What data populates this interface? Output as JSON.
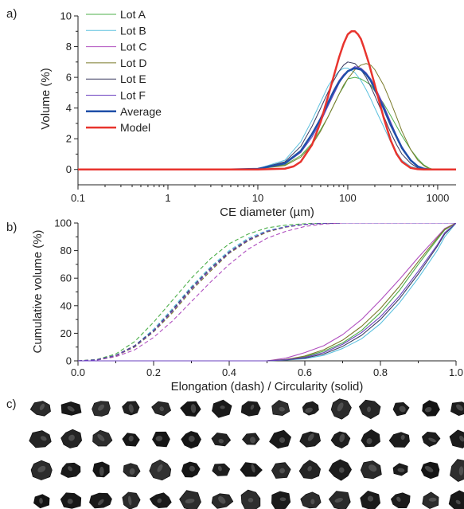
{
  "panels": {
    "a": "a)",
    "b": "b)",
    "c": "c)"
  },
  "chart_data": [
    {
      "type": "line",
      "panel": "a)",
      "xlabel": "CE diameter (µm)",
      "ylabel": "Volume (%)",
      "xscale": "log",
      "xlim": [
        0.1,
        1600
      ],
      "ylim": [
        -1,
        10
      ],
      "xticks": [
        0.1,
        1,
        10,
        100,
        1000
      ],
      "xtick_labels": [
        "0.1",
        "1",
        "10",
        "100",
        "1000"
      ],
      "yticks": [
        0,
        2,
        4,
        6,
        8,
        10
      ],
      "ytick_labels": [
        "0",
        "2",
        "4",
        "6",
        "8",
        "10"
      ],
      "grid": false,
      "legend_position": "top-left",
      "series": [
        {
          "name": "Lot A",
          "color": "#4daf4a",
          "width": 1,
          "x": [
            0.1,
            5,
            10,
            20,
            30,
            40,
            50,
            60,
            70,
            80,
            90,
            100,
            120,
            140,
            160,
            180,
            200,
            250,
            300,
            350,
            400,
            500,
            600,
            700,
            800,
            900,
            1000,
            1600
          ],
          "y": [
            0,
            0,
            0.05,
            0.3,
            0.9,
            1.7,
            2.6,
            3.4,
            4.2,
            4.9,
            5.4,
            5.9,
            6.0,
            5.9,
            5.7,
            5.5,
            5.1,
            4.3,
            3.5,
            2.8,
            2.2,
            1.3,
            0.7,
            0.3,
            0.1,
            0,
            0,
            0
          ]
        },
        {
          "name": "Lot B",
          "color": "#5bc0de",
          "width": 1,
          "x": [
            0.1,
            5,
            10,
            20,
            30,
            40,
            50,
            60,
            70,
            80,
            90,
            100,
            120,
            140,
            160,
            180,
            200,
            250,
            300,
            350,
            400,
            500,
            600,
            700,
            800,
            900,
            1000,
            1600
          ],
          "y": [
            0,
            0,
            0.05,
            0.6,
            1.8,
            3.2,
            4.4,
            5.4,
            6.0,
            6.4,
            6.6,
            6.6,
            6.3,
            5.8,
            5.2,
            4.6,
            4.0,
            2.8,
            1.8,
            1.1,
            0.6,
            0.2,
            0.05,
            0,
            0,
            0,
            0,
            0
          ]
        },
        {
          "name": "Lot C",
          "color": "#b04fbf",
          "width": 1,
          "x": [
            0.1,
            5,
            10,
            20,
            30,
            40,
            50,
            60,
            70,
            80,
            90,
            100,
            120,
            140,
            160,
            180,
            200,
            250,
            300,
            350,
            400,
            500,
            600,
            700,
            800,
            900,
            1000,
            1600
          ],
          "y": [
            0,
            0,
            0.05,
            0.4,
            1.2,
            2.3,
            3.4,
            4.4,
            5.2,
            5.8,
            6.2,
            6.4,
            6.6,
            6.5,
            6.2,
            5.8,
            5.3,
            4.1,
            3.0,
            2.1,
            1.4,
            0.6,
            0.2,
            0.05,
            0,
            0,
            0,
            0
          ]
        },
        {
          "name": "Lot D",
          "color": "#7a7a2a",
          "width": 1,
          "x": [
            0.1,
            5,
            10,
            20,
            30,
            40,
            50,
            60,
            70,
            80,
            90,
            100,
            120,
            140,
            160,
            180,
            200,
            250,
            300,
            350,
            400,
            500,
            600,
            700,
            800,
            900,
            1000,
            1600
          ],
          "y": [
            0,
            0,
            0.03,
            0.25,
            0.8,
            1.6,
            2.5,
            3.4,
            4.2,
            4.9,
            5.5,
            5.9,
            6.5,
            6.8,
            6.9,
            6.8,
            6.5,
            5.5,
            4.4,
            3.4,
            2.5,
            1.3,
            0.6,
            0.25,
            0.05,
            0,
            0,
            0
          ]
        },
        {
          "name": "Lot E",
          "color": "#3a3a60",
          "width": 1,
          "x": [
            0.1,
            5,
            10,
            20,
            30,
            40,
            50,
            60,
            70,
            80,
            90,
            100,
            120,
            140,
            160,
            180,
            200,
            250,
            300,
            350,
            400,
            500,
            600,
            700,
            800,
            900,
            1000,
            1600
          ],
          "y": [
            0,
            0,
            0.05,
            0.5,
            1.5,
            2.8,
            4.0,
            5.0,
            5.8,
            6.4,
            6.8,
            7.0,
            6.9,
            6.5,
            6.0,
            5.4,
            4.8,
            3.5,
            2.4,
            1.6,
            1.0,
            0.4,
            0.1,
            0,
            0,
            0,
            0,
            0
          ]
        },
        {
          "name": "Lot F",
          "color": "#6a3fbf",
          "width": 1,
          "x": [
            0.1,
            5,
            10,
            20,
            30,
            40,
            50,
            60,
            70,
            80,
            90,
            100,
            120,
            140,
            160,
            180,
            200,
            250,
            300,
            350,
            400,
            500,
            600,
            700,
            800,
            900,
            1000,
            1600
          ],
          "y": [
            0,
            0,
            0.04,
            0.35,
            1.1,
            2.1,
            3.1,
            4.1,
            4.9,
            5.6,
            6.1,
            6.4,
            6.7,
            6.6,
            6.3,
            5.9,
            5.4,
            4.2,
            3.1,
            2.2,
            1.5,
            0.6,
            0.2,
            0.05,
            0,
            0,
            0,
            0
          ]
        },
        {
          "name": "Average",
          "color": "#1f4fa8",
          "width": 2.5,
          "x": [
            0.1,
            5,
            10,
            20,
            30,
            40,
            50,
            60,
            70,
            80,
            90,
            100,
            120,
            140,
            160,
            180,
            200,
            250,
            300,
            350,
            400,
            500,
            600,
            700,
            800,
            900,
            1000,
            1600
          ],
          "y": [
            0,
            0,
            0.04,
            0.4,
            1.2,
            2.3,
            3.3,
            4.3,
            5.1,
            5.7,
            6.1,
            6.4,
            6.6,
            6.5,
            6.2,
            5.8,
            5.2,
            4.0,
            2.9,
            2.1,
            1.4,
            0.6,
            0.2,
            0.05,
            0,
            0,
            0,
            0
          ]
        },
        {
          "name": "Model",
          "color": "#e8342e",
          "width": 2.5,
          "x": [
            0.1,
            10,
            20,
            25,
            30,
            40,
            50,
            60,
            70,
            80,
            90,
            100,
            110,
            120,
            130,
            140,
            150,
            170,
            200,
            250,
            300,
            350,
            400,
            500,
            600,
            700,
            800,
            1000,
            1600
          ],
          "y": [
            0,
            0,
            0.05,
            0.2,
            0.5,
            1.6,
            3.1,
            4.7,
            6.1,
            7.3,
            8.2,
            8.8,
            9.0,
            9.0,
            8.8,
            8.5,
            8.0,
            7.0,
            5.5,
            3.4,
            1.9,
            1.0,
            0.5,
            0.1,
            0.02,
            0,
            0,
            0,
            0
          ]
        }
      ]
    },
    {
      "type": "line",
      "panel": "b)",
      "xlabel": "Elongation (dash) / Circularity (solid)",
      "ylabel": "Cumulative volume (%)",
      "xlim": [
        0,
        1
      ],
      "ylim": [
        0,
        100
      ],
      "xticks": [
        0,
        0.2,
        0.4,
        0.6,
        0.8,
        1
      ],
      "xtick_labels": [
        "0.0",
        "0.2",
        "0.4",
        "0.6",
        "0.8",
        "1.0"
      ],
      "yticks": [
        0,
        20,
        40,
        60,
        80,
        100
      ],
      "ytick_labels": [
        "0",
        "20",
        "40",
        "60",
        "80",
        "100"
      ],
      "grid": false,
      "series": [
        {
          "name": "Lot A elongation",
          "color": "#4daf4a",
          "dash": true,
          "x": [
            0.0,
            0.05,
            0.1,
            0.15,
            0.2,
            0.25,
            0.3,
            0.35,
            0.4,
            0.45,
            0.5,
            0.55,
            0.6,
            0.65,
            0.7,
            1.0
          ],
          "y": [
            0,
            1,
            5,
            14,
            28,
            44,
            60,
            74,
            85,
            92,
            96.5,
            98.5,
            99.5,
            100,
            100,
            100
          ]
        },
        {
          "name": "Lot B elongation",
          "color": "#5bc0de",
          "dash": true,
          "x": [
            0.0,
            0.05,
            0.1,
            0.15,
            0.2,
            0.25,
            0.3,
            0.35,
            0.4,
            0.45,
            0.5,
            0.55,
            0.6,
            0.65,
            0.7,
            1.0
          ],
          "y": [
            0,
            0.8,
            4,
            11,
            23,
            38,
            54,
            68,
            80,
            89,
            94.5,
            97.5,
            99,
            99.8,
            100,
            100
          ]
        },
        {
          "name": "Lot C elongation",
          "color": "#b04fbf",
          "dash": true,
          "x": [
            0.0,
            0.05,
            0.1,
            0.15,
            0.2,
            0.25,
            0.3,
            0.35,
            0.4,
            0.45,
            0.5,
            0.55,
            0.6,
            0.65,
            0.7,
            1.0
          ],
          "y": [
            0,
            0.5,
            3,
            8,
            17,
            29,
            43,
            57,
            70,
            81,
            89,
            94,
            97.5,
            99.3,
            100,
            100
          ]
        },
        {
          "name": "Lot D elongation",
          "color": "#7a7a2a",
          "dash": true,
          "x": [
            0.0,
            0.05,
            0.1,
            0.15,
            0.2,
            0.25,
            0.3,
            0.35,
            0.4,
            0.45,
            0.5,
            0.55,
            0.6,
            0.65,
            0.7,
            1.0
          ],
          "y": [
            0,
            0.7,
            3.6,
            10,
            21,
            35,
            51,
            65,
            78,
            87,
            93.5,
            97,
            99,
            99.8,
            100,
            100
          ]
        },
        {
          "name": "Lot E elongation",
          "color": "#3a3a60",
          "dash": true,
          "x": [
            0.0,
            0.05,
            0.1,
            0.15,
            0.2,
            0.25,
            0.3,
            0.35,
            0.4,
            0.45,
            0.5,
            0.55,
            0.6,
            0.65,
            0.7,
            1.0
          ],
          "y": [
            0,
            0.8,
            4,
            11,
            22,
            37,
            53,
            67,
            79,
            88,
            94,
            97.3,
            99,
            99.8,
            100,
            100
          ]
        },
        {
          "name": "Lot F elongation",
          "color": "#6a3fbf",
          "dash": true,
          "x": [
            0.0,
            0.05,
            0.1,
            0.15,
            0.2,
            0.25,
            0.3,
            0.35,
            0.4,
            0.45,
            0.5,
            0.55,
            0.6,
            0.65,
            0.7,
            1.0
          ],
          "y": [
            0,
            0.7,
            3.8,
            10.5,
            21.5,
            36,
            52,
            66,
            78.5,
            87.5,
            94,
            97.2,
            99,
            99.8,
            100,
            100
          ]
        },
        {
          "name": "Lot A circularity",
          "color": "#4daf4a",
          "dash": false,
          "x": [
            0.0,
            0.5,
            0.55,
            0.6,
            0.65,
            0.7,
            0.75,
            0.8,
            0.85,
            0.9,
            0.95,
            0.97,
            1.0
          ],
          "y": [
            0,
            0,
            1,
            3,
            7,
            13,
            22,
            35,
            51,
            70,
            88,
            95,
            100
          ]
        },
        {
          "name": "Lot B circularity",
          "color": "#5bc0de",
          "dash": false,
          "x": [
            0.0,
            0.5,
            0.55,
            0.6,
            0.65,
            0.7,
            0.75,
            0.8,
            0.85,
            0.9,
            0.95,
            0.97,
            1.0
          ],
          "y": [
            0,
            0,
            0.5,
            1.5,
            4,
            9,
            16,
            27,
            42,
            60,
            80,
            90,
            100
          ]
        },
        {
          "name": "Lot C circularity",
          "color": "#b04fbf",
          "dash": false,
          "x": [
            0.0,
            0.5,
            0.55,
            0.6,
            0.65,
            0.7,
            0.75,
            0.8,
            0.85,
            0.9,
            0.95,
            0.97,
            1.0
          ],
          "y": [
            0,
            0,
            2,
            6,
            11,
            19,
            30,
            44,
            59,
            75,
            90,
            96,
            100
          ]
        },
        {
          "name": "Lot D circularity",
          "color": "#7a7a2a",
          "dash": false,
          "x": [
            0.0,
            0.5,
            0.55,
            0.6,
            0.65,
            0.7,
            0.75,
            0.8,
            0.85,
            0.9,
            0.95,
            0.97,
            1.0
          ],
          "y": [
            0,
            0,
            1,
            3.5,
            8,
            15,
            25,
            38,
            54,
            72,
            89,
            95.5,
            100
          ]
        },
        {
          "name": "Lot E circularity",
          "color": "#3a3a60",
          "dash": false,
          "x": [
            0.0,
            0.5,
            0.55,
            0.6,
            0.65,
            0.7,
            0.75,
            0.8,
            0.85,
            0.9,
            0.95,
            0.97,
            1.0
          ],
          "y": [
            0,
            0,
            0.7,
            2,
            5,
            10.5,
            18.5,
            30,
            45,
            63,
            83,
            92,
            100
          ]
        },
        {
          "name": "Lot F circularity",
          "color": "#6a3fbf",
          "dash": false,
          "x": [
            0.0,
            0.5,
            0.55,
            0.6,
            0.65,
            0.7,
            0.75,
            0.8,
            0.85,
            0.9,
            0.95,
            0.97,
            1.0
          ],
          "y": [
            0,
            0,
            0.8,
            2.5,
            6,
            12,
            20.5,
            32,
            47,
            65,
            84,
            93,
            100
          ]
        }
      ]
    }
  ]
}
